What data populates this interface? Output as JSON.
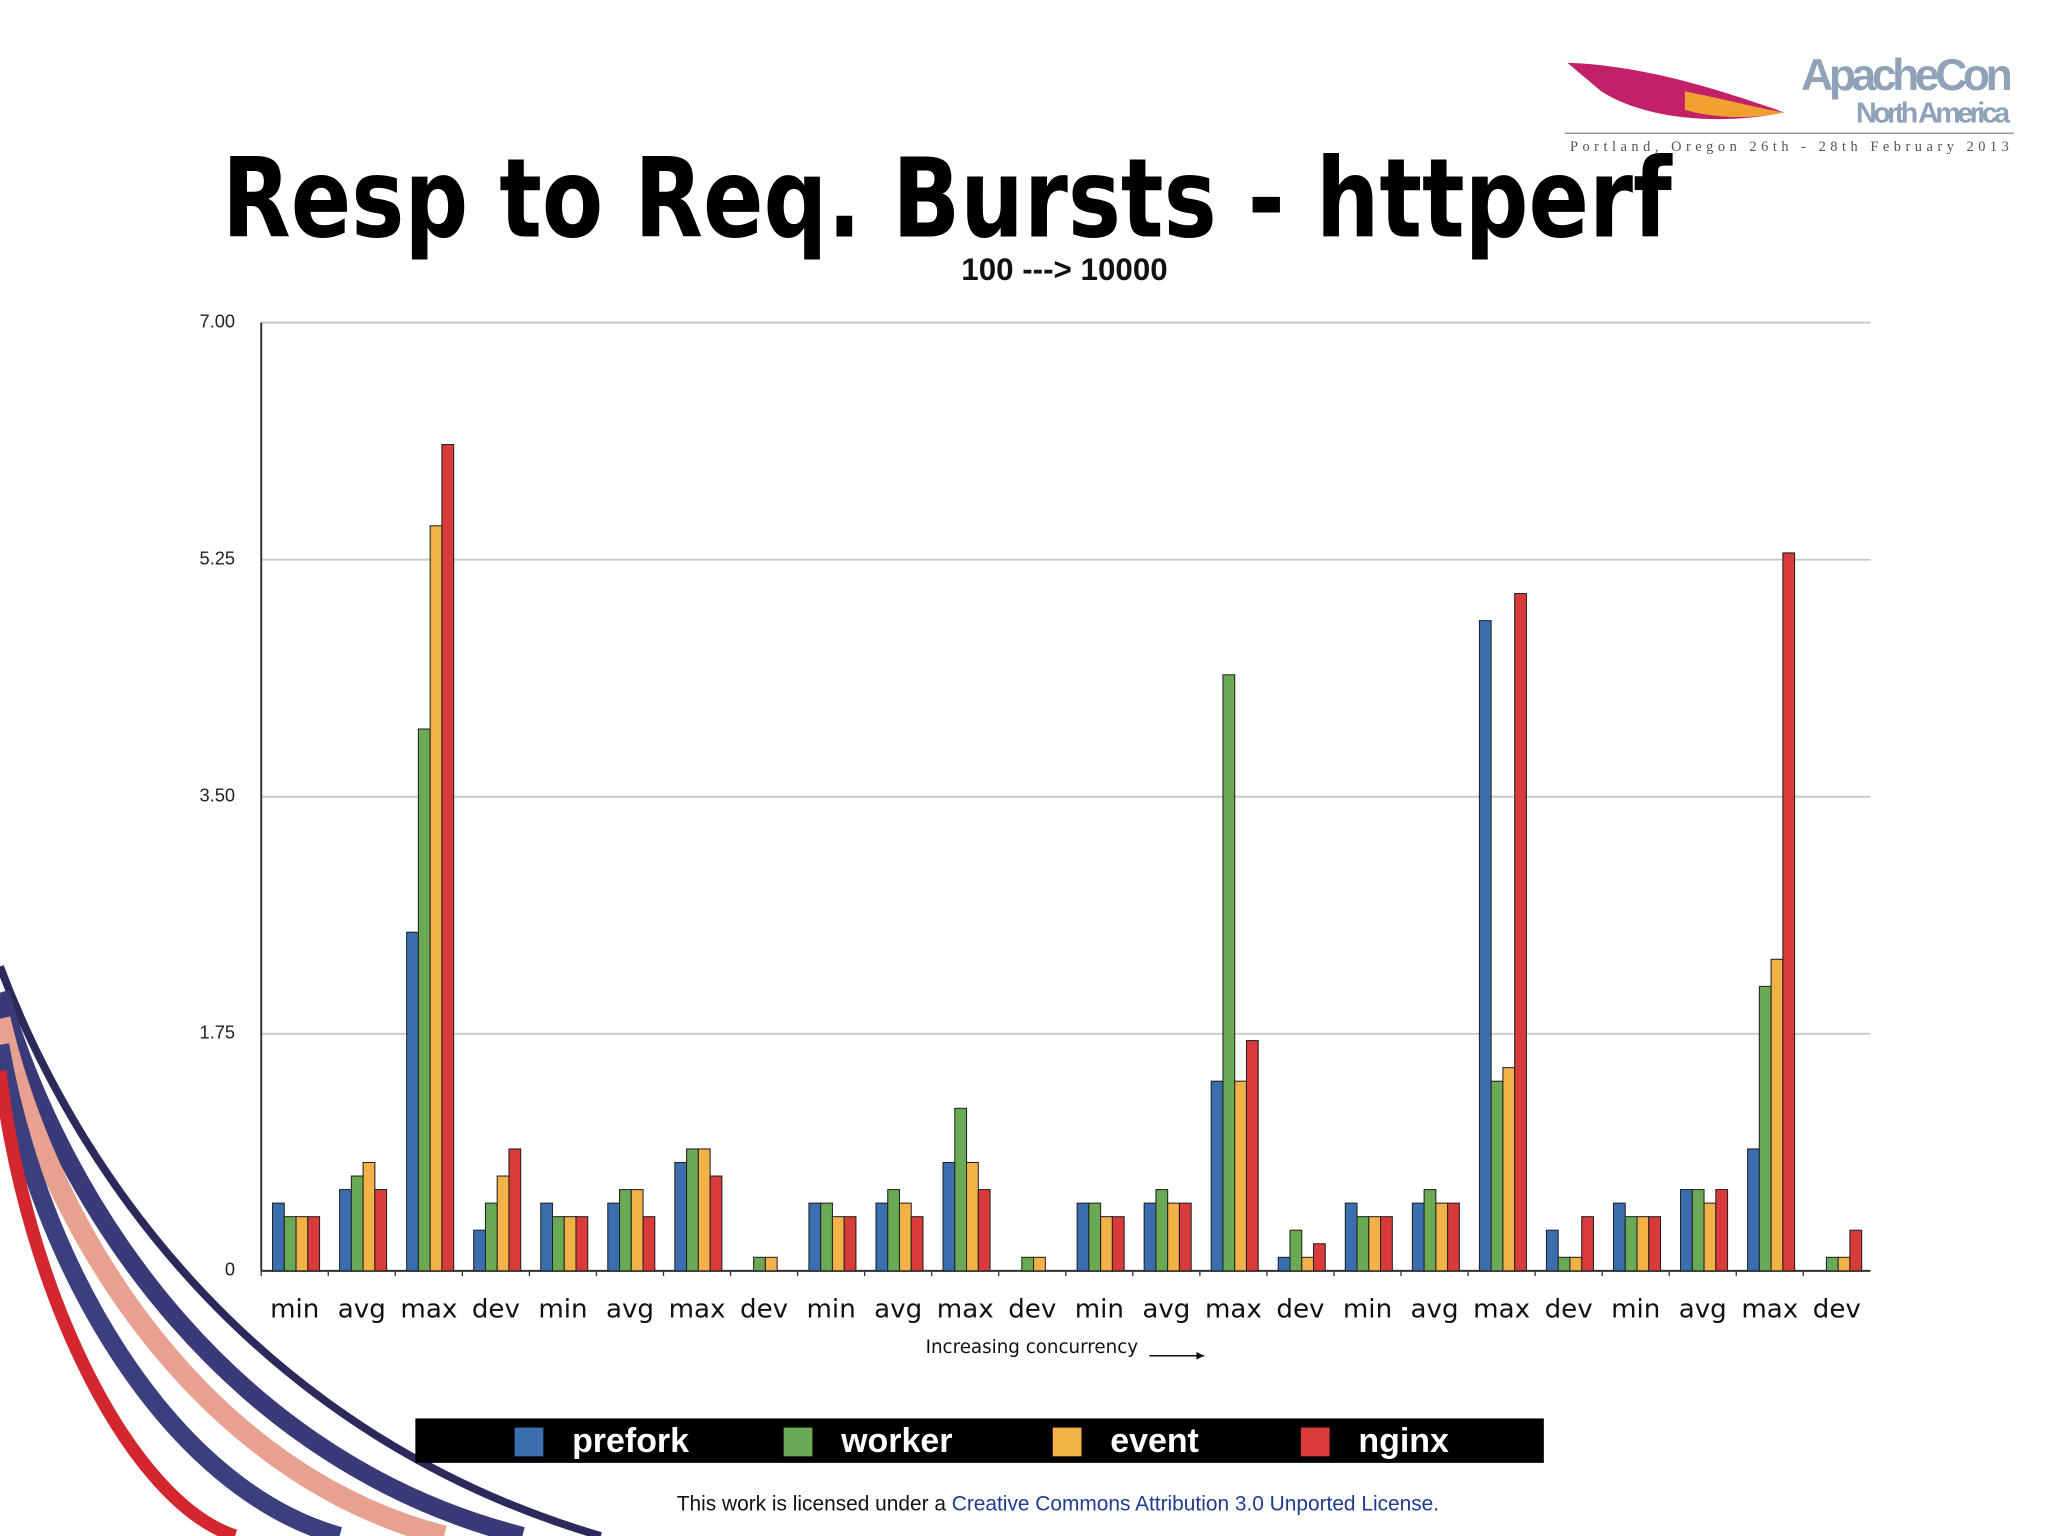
{
  "chart_data": {
    "type": "bar",
    "title": "Resp to Req. Bursts - httperf",
    "subtitle": "100 ---> 10000",
    "x_label": "Increasing concurrency",
    "categories": [
      "min",
      "avg",
      "max",
      "dev",
      "min",
      "avg",
      "max",
      "dev",
      "min",
      "avg",
      "max",
      "dev",
      "min",
      "avg",
      "max",
      "dev",
      "min",
      "avg",
      "max",
      "dev",
      "min",
      "avg",
      "max",
      "dev"
    ],
    "series": [
      {
        "name": "prefork",
        "color": "#3b6eae",
        "values": [
          0.5,
          0.6,
          2.5,
          0.3,
          0.5,
          0.5,
          0.8,
          0,
          0.5,
          0.5,
          0.8,
          0,
          0.5,
          0.5,
          1.4,
          0.1,
          0.5,
          0.5,
          4.8,
          0.3,
          0.5,
          0.6,
          0.9,
          0
        ]
      },
      {
        "name": "worker",
        "color": "#6aaa55",
        "values": [
          0.4,
          0.7,
          4.0,
          0.5,
          0.4,
          0.6,
          0.9,
          0.1,
          0.5,
          0.6,
          1.2,
          0.1,
          0.5,
          0.6,
          4.4,
          0.3,
          0.4,
          0.6,
          1.4,
          0.1,
          0.4,
          0.6,
          2.1,
          0.1
        ]
      },
      {
        "name": "event",
        "color": "#f2b247",
        "values": [
          0.4,
          0.8,
          5.5,
          0.7,
          0.4,
          0.6,
          0.9,
          0.1,
          0.4,
          0.5,
          0.8,
          0.1,
          0.4,
          0.5,
          1.4,
          0.1,
          0.4,
          0.5,
          1.5,
          0.1,
          0.4,
          0.5,
          2.3,
          0.1
        ]
      },
      {
        "name": "nginx",
        "color": "#d93a3a",
        "values": [
          0.4,
          0.6,
          6.1,
          0.9,
          0.4,
          0.4,
          0.7,
          0,
          0.4,
          0.4,
          0.6,
          0,
          0.4,
          0.5,
          1.7,
          0.2,
          0.4,
          0.5,
          5.0,
          0.4,
          0.4,
          0.6,
          5.3,
          0.3
        ]
      }
    ],
    "ylim": [
      0,
      7
    ],
    "yticks": [
      0,
      {
        "value": 1.75,
        "label": "1.75"
      },
      {
        "value": 3.5,
        "label": "3.50"
      },
      {
        "value": 5.25,
        "label": "5.25"
      },
      {
        "value": 7,
        "label": "7.00"
      }
    ],
    "grid": true,
    "legend": "bottom"
  },
  "slide": {
    "logo": {
      "name": "ApacheCon",
      "region": "North America",
      "event": "Portland, Oregon 26th - 28th February 2013"
    },
    "footer": {
      "text": "This work is licensed under a ",
      "link": "Creative Commons Attribution 3.0 Unported License."
    }
  }
}
